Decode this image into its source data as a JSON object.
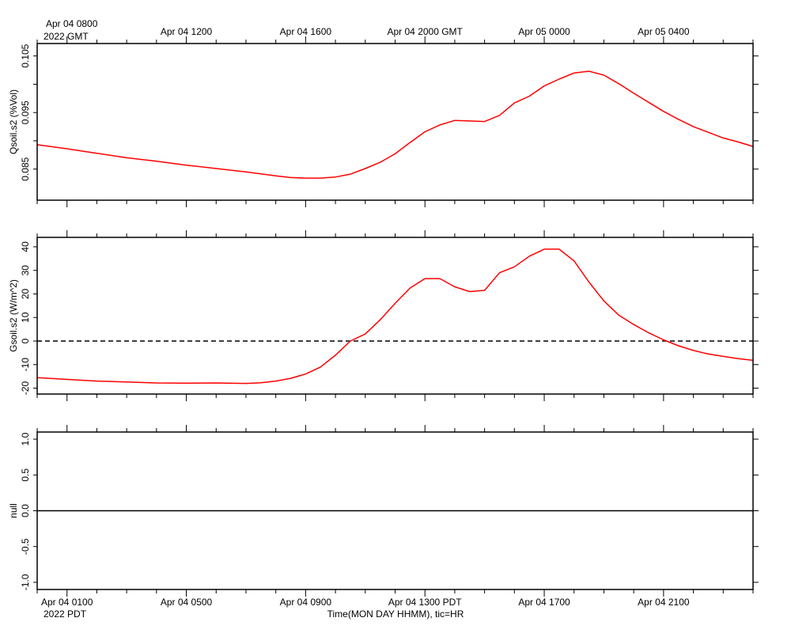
{
  "chart_data": [
    {
      "type": "line",
      "ylabel": "Qsoil.s2 (%Vol)",
      "ylim": [
        0.0795,
        0.1072
      ],
      "yticks": [
        0.085,
        0.09,
        0.095,
        0.1,
        0.105
      ],
      "ytick_labels": [
        "0.085",
        "0.095",
        "0.105"
      ],
      "ytick_label_values": [
        0.085,
        0.095,
        0.105
      ],
      "series": [
        {
          "color": "#ff0000",
          "x": [
            0,
            1,
            2,
            3,
            4,
            5,
            6,
            7,
            8,
            8.5,
            9,
            9.5,
            10,
            10.5,
            11,
            11.5,
            12,
            12.5,
            13,
            13.5,
            14,
            14.5,
            15,
            15.5,
            16,
            16.5,
            17,
            17.5,
            18,
            18.5,
            19,
            19.5,
            20,
            20.5,
            21,
            21.5,
            22,
            22.5,
            23,
            23.5,
            24
          ],
          "y": [
            0.0893,
            0.0886,
            0.0878,
            0.087,
            0.0864,
            0.0857,
            0.0851,
            0.0845,
            0.0838,
            0.0835,
            0.0834,
            0.0834,
            0.0836,
            0.0841,
            0.0851,
            0.0862,
            0.0877,
            0.0897,
            0.0916,
            0.0928,
            0.0936,
            0.0935,
            0.0934,
            0.0945,
            0.0967,
            0.0979,
            0.0997,
            0.1009,
            0.102,
            0.1023,
            0.1016,
            0.1001,
            0.0984,
            0.0968,
            0.0952,
            0.0938,
            0.0925,
            0.0915,
            0.0905,
            0.0898,
            0.089
          ]
        }
      ]
    },
    {
      "type": "line",
      "ylabel": "Gsoil.s2 (W/m^2)",
      "ylim": [
        -22.5,
        44
      ],
      "yticks": [
        -20,
        -10,
        0,
        10,
        20,
        30,
        40
      ],
      "ytick_labels": [
        "-20",
        "-10",
        "0",
        "10",
        "20",
        "30",
        "40"
      ],
      "ytick_label_values": [
        -20,
        -10,
        0,
        10,
        20,
        30,
        40
      ],
      "reference_line": {
        "y": 0,
        "style": "dashed"
      },
      "series": [
        {
          "color": "#ff0000",
          "x": [
            0,
            1,
            2,
            3,
            4,
            5,
            6,
            7,
            7.5,
            8,
            8.5,
            9,
            9.5,
            10,
            10.5,
            11,
            11.5,
            12,
            12.5,
            13,
            13.5,
            14,
            14.5,
            15,
            15.5,
            16,
            16.5,
            17,
            17.5,
            18,
            18.5,
            19,
            19.5,
            20,
            20.5,
            21,
            21.5,
            22,
            22.5,
            23,
            23.5,
            24
          ],
          "y": [
            -15.5,
            -16.3,
            -17.0,
            -17.4,
            -17.8,
            -17.9,
            -17.8,
            -18.0,
            -17.7,
            -17.0,
            -15.8,
            -14.0,
            -11.0,
            -6.0,
            0.0,
            3.0,
            9.0,
            16.0,
            22.5,
            26.5,
            26.5,
            23.0,
            21.0,
            21.5,
            29.0,
            31.5,
            36.0,
            39.0,
            39.0,
            34.0,
            25.0,
            17.0,
            11.0,
            7.0,
            3.5,
            0.5,
            -2.0,
            -4.0,
            -5.5,
            -6.5,
            -7.5,
            -8.2
          ]
        }
      ]
    },
    {
      "type": "line",
      "ylabel": "null",
      "ylim": [
        -1.1,
        1.1
      ],
      "yticks": [
        -1.0,
        -0.5,
        0.0,
        0.5,
        1.0
      ],
      "ytick_labels": [
        "-1.0",
        "-0.5",
        "0.0",
        "0.5",
        "1.0"
      ],
      "ytick_label_values": [
        -1.0,
        -0.5,
        0.0,
        0.5,
        1.0
      ],
      "reference_line": {
        "y": 0,
        "style": "solid"
      },
      "series": []
    }
  ],
  "time_axis": {
    "x_unit": "hours since Apr 04 0700 GMT",
    "xlim": [
      0,
      24
    ],
    "minor_tick_step": 1,
    "labeled_ticks": [
      1,
      5,
      9,
      13,
      17,
      21
    ],
    "top_labels": [
      "Apr 04 0800",
      "Apr 04 1200",
      "Apr 04 1600",
      "Apr 04 2000 GMT",
      "Apr 05 0000",
      "Apr 05 0400"
    ],
    "top_year_label": "2022 GMT",
    "bottom_labels": [
      "Apr 04 0100",
      "Apr 04 0500",
      "Apr 04 0900",
      "Apr 04 1300 PDT",
      "Apr 04 1700",
      "Apr 04 2100"
    ],
    "bottom_year_label": "2022 PDT",
    "xlabel": "Time(MON DAY HHMM), tic=HR"
  }
}
